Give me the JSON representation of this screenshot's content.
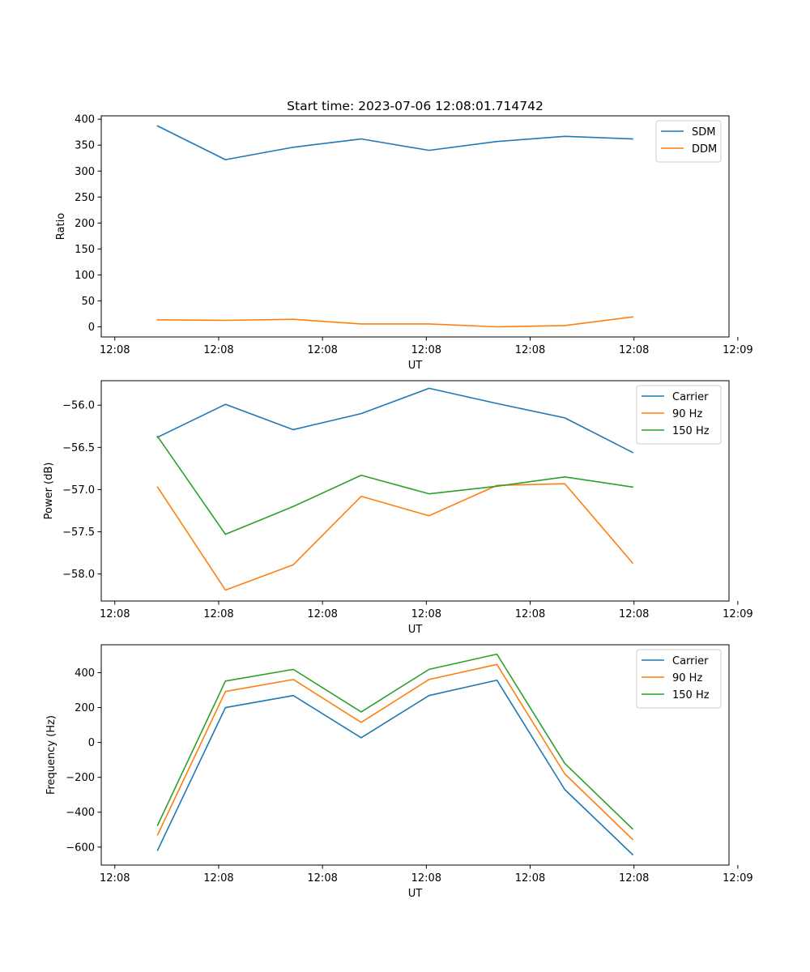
{
  "chart_data": [
    {
      "type": "line",
      "title": "Start time: 2023-07-06 12:08:01.714742",
      "xlabel": "UT",
      "ylabel": "Ratio",
      "x": [
        1,
        2,
        3,
        4,
        5,
        6,
        7,
        8
      ],
      "xlim": [
        0.17,
        9.42
      ],
      "ylim": [
        -19.5,
        406.5
      ],
      "xticks": [
        0.37,
        1.9,
        3.43,
        4.96,
        6.49,
        8.02,
        9.55
      ],
      "xtick_labels": [
        "12:08",
        "12:08",
        "12:08",
        "12:08",
        "12:08",
        "12:08",
        "12:09"
      ],
      "yticks": [
        0,
        50,
        100,
        150,
        200,
        250,
        300,
        350,
        400
      ],
      "ytick_labels": [
        "0",
        "50",
        "100",
        "150",
        "200",
        "250",
        "300",
        "350",
        "400"
      ],
      "series": [
        {
          "name": "SDM",
          "color": "#1f77b4",
          "values": [
            387,
            322,
            346,
            362,
            340,
            357,
            367,
            362
          ]
        },
        {
          "name": "DDM",
          "color": "#ff7f0e",
          "values": [
            13.5,
            12.5,
            14.5,
            5.5,
            5.5,
            0,
            2.5,
            19
          ]
        }
      ],
      "legend": "top-right"
    },
    {
      "type": "line",
      "title": "",
      "xlabel": "UT",
      "ylabel": "Power (dB)",
      "x": [
        1,
        2,
        3,
        4,
        5,
        6,
        7,
        8
      ],
      "xlim": [
        0.17,
        9.42
      ],
      "ylim": [
        -58.32,
        -55.71
      ],
      "xticks": [
        0.37,
        1.9,
        3.43,
        4.96,
        6.49,
        8.02,
        9.55
      ],
      "xtick_labels": [
        "12:08",
        "12:08",
        "12:08",
        "12:08",
        "12:08",
        "12:08",
        "12:09"
      ],
      "yticks": [
        -58.0,
        -57.5,
        -57.0,
        -56.5,
        -56.0
      ],
      "ytick_labels": [
        "−58.0",
        "−57.5",
        "−57.0",
        "−56.5",
        "−56.0"
      ],
      "series": [
        {
          "name": "Carrier",
          "color": "#1f77b4",
          "values": [
            -56.38,
            -55.99,
            -56.29,
            -56.1,
            -55.8,
            -55.98,
            -56.15,
            -56.56
          ]
        },
        {
          "name": "90 Hz",
          "color": "#ff7f0e",
          "values": [
            -56.97,
            -58.19,
            -57.89,
            -57.08,
            -57.31,
            -56.95,
            -56.93,
            -57.87
          ]
        },
        {
          "name": "150 Hz",
          "color": "#2ca02c",
          "values": [
            -56.37,
            -57.53,
            -57.2,
            -56.83,
            -57.05,
            -56.96,
            -56.85,
            -56.97
          ]
        }
      ],
      "legend": "top-right"
    },
    {
      "type": "line",
      "title": "",
      "xlabel": "UT",
      "ylabel": "Frequency (Hz)",
      "x": [
        1,
        2,
        3,
        4,
        5,
        6,
        7,
        8
      ],
      "xlim": [
        0.17,
        9.42
      ],
      "ylim": [
        -703,
        560
      ],
      "xticks": [
        0.37,
        1.9,
        3.43,
        4.96,
        6.49,
        8.02,
        9.55
      ],
      "xtick_labels": [
        "12:08",
        "12:08",
        "12:08",
        "12:08",
        "12:08",
        "12:08",
        "12:09"
      ],
      "yticks": [
        -600,
        -400,
        -200,
        0,
        200,
        400
      ],
      "ytick_labels": [
        "−600",
        "−400",
        "−200",
        "0",
        "200",
        "400"
      ],
      "series": [
        {
          "name": "Carrier",
          "color": "#1f77b4",
          "values": [
            -618,
            200,
            269,
            27,
            269,
            357,
            -270,
            -643
          ]
        },
        {
          "name": "90 Hz",
          "color": "#ff7f0e",
          "values": [
            -530,
            292,
            361,
            115,
            361,
            447,
            -180,
            -556
          ]
        },
        {
          "name": "150 Hz",
          "color": "#2ca02c",
          "values": [
            -475,
            352,
            419,
            175,
            419,
            506,
            -120,
            -496
          ]
        }
      ],
      "legend": "top-right"
    }
  ]
}
